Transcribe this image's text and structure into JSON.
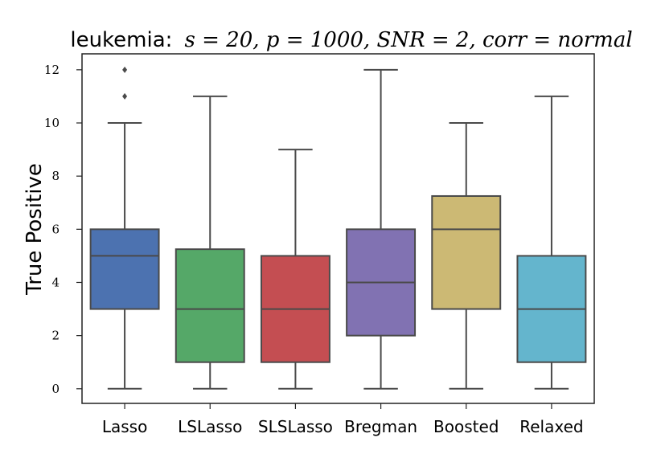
{
  "chart_data": {
    "type": "boxplot",
    "title_prefix": "leukemia:",
    "title_math": "s = 20, p = 1000, SNR = 2, corr = normal",
    "ylabel": "True Positive",
    "xlabel": "",
    "ylim": [
      -0.55,
      12.6
    ],
    "yticks": [
      0,
      2,
      4,
      6,
      8,
      10,
      12
    ],
    "grid": false,
    "categories": [
      "Lasso",
      "LSLasso",
      "SLSLasso",
      "Bregman",
      "Boosted",
      "Relaxed"
    ],
    "series": [
      {
        "name": "Lasso",
        "color": "#4c72b0",
        "whisker_low": 0,
        "q1": 3,
        "median": 5,
        "q3": 6,
        "whisker_high": 10,
        "outliers": [
          11,
          12
        ]
      },
      {
        "name": "LSLasso",
        "color": "#55a868",
        "whisker_low": 0,
        "q1": 1,
        "median": 3,
        "q3": 5.25,
        "whisker_high": 11,
        "outliers": []
      },
      {
        "name": "SLSLasso",
        "color": "#c44e52",
        "whisker_low": 0,
        "q1": 1,
        "median": 3,
        "q3": 5,
        "whisker_high": 9,
        "outliers": []
      },
      {
        "name": "Bregman",
        "color": "#8172b2",
        "whisker_low": 0,
        "q1": 2,
        "median": 4,
        "q3": 6,
        "whisker_high": 12,
        "outliers": []
      },
      {
        "name": "Boosted",
        "color": "#ccb974",
        "whisker_low": 0,
        "q1": 3,
        "median": 6,
        "q3": 7.25,
        "whisker_high": 10,
        "outliers": []
      },
      {
        "name": "Relaxed",
        "color": "#64b5cd",
        "whisker_low": 0,
        "q1": 1,
        "median": 3,
        "q3": 5,
        "whisker_high": 11,
        "outliers": []
      }
    ]
  }
}
